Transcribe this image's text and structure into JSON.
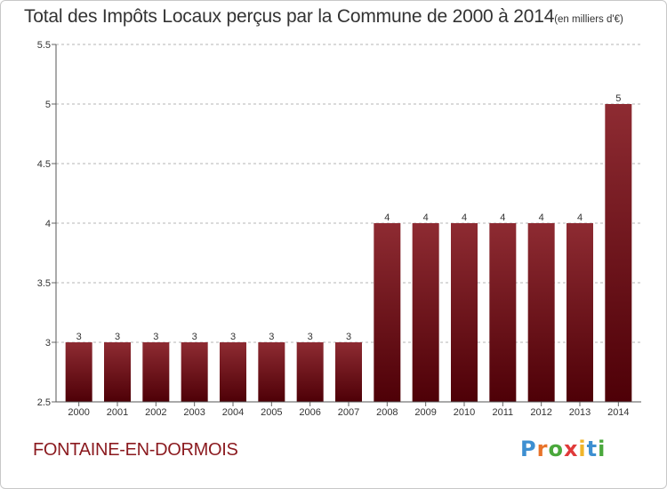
{
  "title": "Total des Impôts Locaux perçus par la Commune de 2000 à 2014",
  "title_unit": "(en milliers d'€)",
  "commune": "FONTAINE-EN-DORMOIS",
  "logo": {
    "letters": [
      "P",
      "r",
      "o",
      "x",
      "i",
      "t",
      "i"
    ],
    "colors": [
      "#3d8fd1",
      "#e8732a",
      "#4aa83c",
      "#e03a3a",
      "#f0b52b",
      "#3d8fd1",
      "#4aa83c"
    ]
  },
  "colors": {
    "bar_top": "#8e2b32",
    "bar_bottom": "#4e0007",
    "grid": "#b4b4b4",
    "text": "#333333"
  },
  "chart_data": {
    "type": "bar",
    "categories": [
      "2000",
      "2001",
      "2002",
      "2003",
      "2004",
      "2005",
      "2006",
      "2007",
      "2008",
      "2009",
      "2010",
      "2011",
      "2012",
      "2013",
      "2014"
    ],
    "values": [
      3,
      3,
      3,
      3,
      3,
      3,
      3,
      3,
      4,
      4,
      4,
      4,
      4,
      4,
      5
    ],
    "data_labels": [
      "3",
      "3",
      "3",
      "3",
      "3",
      "3",
      "3",
      "3",
      "4",
      "4",
      "4",
      "4",
      "4",
      "4",
      "5"
    ],
    "ylim": [
      2.5,
      5.5
    ],
    "yticks": [
      2.5,
      3,
      3.5,
      4,
      4.5,
      5,
      5.5
    ],
    "ytick_labels": [
      "2.5",
      "3",
      "3.5",
      "4",
      "4.5",
      "5",
      "5.5"
    ],
    "grid": "horizontal dashed",
    "xlabel": "",
    "ylabel": ""
  }
}
